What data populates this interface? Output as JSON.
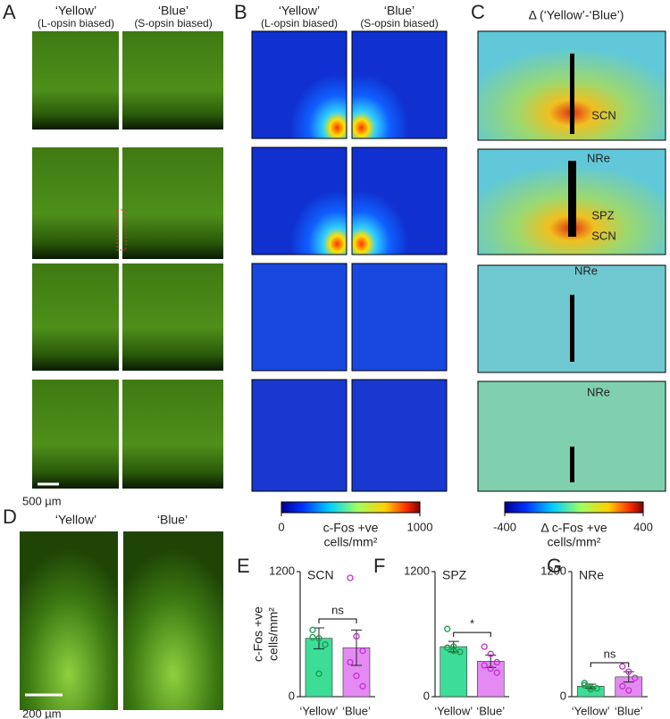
{
  "panels": {
    "A": {
      "letter": "A",
      "titles": [
        "‘Yellow’",
        "‘Blue’"
      ],
      "subtitles": [
        "(L-opsin biased)",
        "(S-opsin biased)"
      ],
      "scale": "500 µm"
    },
    "B": {
      "letter": "B",
      "titles": [
        "‘Yellow’",
        "‘Blue’"
      ],
      "subtitles": [
        "(L-opsin biased)",
        "(S-opsin biased)"
      ],
      "colorbar": {
        "lim": [
          0,
          1000
        ],
        "ticks": [
          0,
          1000
        ],
        "label": [
          "c-Fos +ve",
          "cells/mm²"
        ]
      }
    },
    "C": {
      "letter": "C",
      "title": "Δ (‘Yellow’-‘Blue’)",
      "labels": [
        [
          "SCN"
        ],
        [
          "NRe",
          "SPZ",
          "SCN"
        ],
        [
          "NRe"
        ],
        [
          "NRe"
        ]
      ],
      "colorbar": {
        "lim": [
          -400,
          400
        ],
        "ticks": [
          -400,
          400
        ],
        "label": [
          "Δ c-Fos +ve",
          "cells/mm²"
        ]
      }
    },
    "D": {
      "letter": "D",
      "titles": [
        "‘Yellow’",
        "‘Blue’"
      ],
      "scale": "200 µm"
    }
  },
  "chart_data": [
    {
      "type": "bar",
      "letter": "E",
      "title": "SCN",
      "ylabel": [
        "c-Fos +ve",
        "cells/mm²"
      ],
      "categories": [
        "‘Yellow’",
        "‘Blue’"
      ],
      "values": [
        560,
        470
      ],
      "errors": [
        100,
        170
      ],
      "colors": [
        "#3ddc97",
        "#e48af2"
      ],
      "point_colors": [
        "#1a9a4a",
        "#c030d0"
      ],
      "points": [
        [
          640,
          560,
          500,
          570,
          220
        ],
        [
          1140,
          580,
          440,
          330,
          200,
          100
        ]
      ],
      "annotation": "ns",
      "ylim": [
        0,
        1200
      ],
      "yticks": [
        0,
        1200
      ]
    },
    {
      "type": "bar",
      "letter": "F",
      "title": "SPZ",
      "categories": [
        "‘Yellow’",
        "‘Blue’"
      ],
      "values": [
        480,
        340
      ],
      "errors": [
        50,
        60
      ],
      "colors": [
        "#3ddc97",
        "#e48af2"
      ],
      "point_colors": [
        "#1a9a4a",
        "#c030d0"
      ],
      "points": [
        [
          650,
          480,
          430,
          470,
          440
        ],
        [
          480,
          410,
          330,
          300,
          270,
          230
        ]
      ],
      "annotation": "*",
      "ylim": [
        0,
        1200
      ],
      "yticks": [
        0,
        1200
      ]
    },
    {
      "type": "bar",
      "letter": "G",
      "title": "NRe",
      "categories": [
        "‘Yellow’",
        "‘Blue’"
      ],
      "values": [
        100,
        190
      ],
      "errors": [
        20,
        50
      ],
      "colors": [
        "#3ddc97",
        "#e48af2"
      ],
      "point_colors": [
        "#1a9a4a",
        "#c030d0"
      ],
      "points": [
        [
          130,
          90,
          80,
          110,
          70
        ],
        [
          290,
          240,
          180,
          100,
          60
        ]
      ],
      "annotation": "ns",
      "ylim": [
        0,
        1200
      ],
      "yticks": [
        0,
        1200
      ]
    }
  ]
}
